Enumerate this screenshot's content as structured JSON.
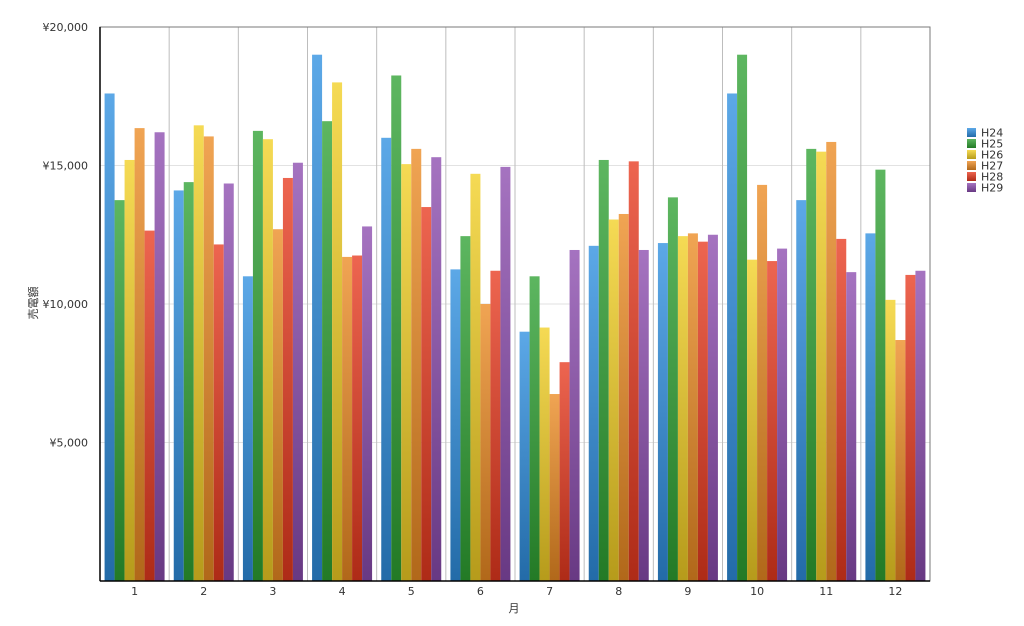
{
  "chart_data": {
    "type": "bar",
    "title": "",
    "xlabel": "月",
    "ylabel": "売電額",
    "ylim": [
      0,
      20000
    ],
    "yticks": [
      5000,
      10000,
      15000,
      20000
    ],
    "ytick_labels": [
      "¥5,000",
      "¥10,000",
      "¥15,000",
      "¥20,000"
    ],
    "grid": "vertical and horizontal",
    "legend_position": "right",
    "categories": [
      "1",
      "2",
      "3",
      "4",
      "5",
      "6",
      "7",
      "8",
      "9",
      "10",
      "11",
      "12"
    ],
    "series": [
      {
        "name": "H24",
        "color": "#2e8fe0",
        "values": [
          17600,
          14100,
          11000,
          19000,
          16000,
          11250,
          9000,
          12100,
          12200,
          17600,
          13750,
          12550
        ]
      },
      {
        "name": "H25",
        "color": "#2fa233",
        "values": [
          13750,
          14400,
          16250,
          16600,
          18250,
          12450,
          11000,
          15200,
          13850,
          19000,
          15600,
          14850
        ]
      },
      {
        "name": "H26",
        "color": "#f2cf24",
        "values": [
          15200,
          16450,
          15950,
          18000,
          15050,
          14700,
          9150,
          13050,
          12450,
          11600,
          15500,
          10150
        ]
      },
      {
        "name": "H27",
        "color": "#ec8a22",
        "values": [
          16350,
          16050,
          12700,
          11700,
          15600,
          10000,
          6750,
          13250,
          12550,
          14300,
          15850,
          8700
        ]
      },
      {
        "name": "H28",
        "color": "#e8391f",
        "values": [
          12650,
          12150,
          14550,
          11750,
          13500,
          11200,
          7900,
          15150,
          12250,
          11550,
          12350,
          11050
        ]
      },
      {
        "name": "H29",
        "color": "#8b4cae",
        "values": [
          16200,
          14350,
          15100,
          12800,
          15300,
          14950,
          11950,
          11950,
          12500,
          12000,
          11150,
          11200
        ]
      }
    ]
  }
}
